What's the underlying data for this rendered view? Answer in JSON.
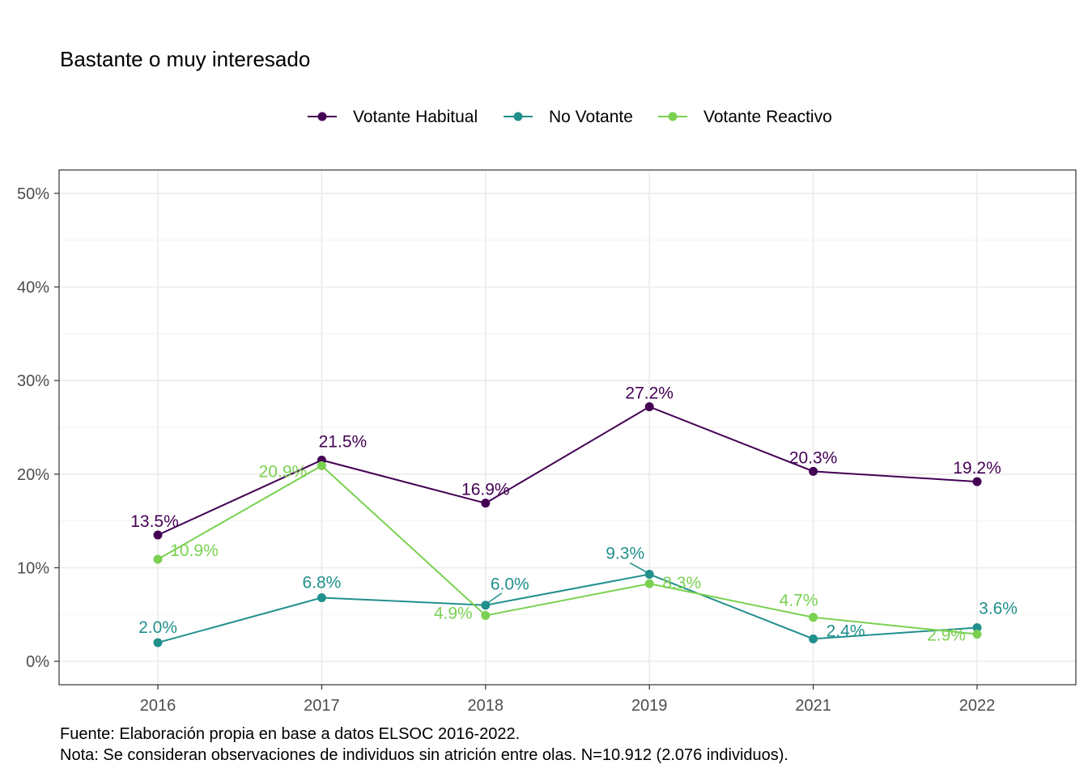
{
  "chart_data": {
    "type": "line",
    "title": "Bastante o muy interesado",
    "x": [
      "2016",
      "2017",
      "2018",
      "2019",
      "2021",
      "2022"
    ],
    "ylim": [
      -0.025,
      0.525
    ],
    "yticks": [
      0,
      0.1,
      0.2,
      0.3,
      0.4,
      0.5
    ],
    "ytick_labels": [
      "0%",
      "10%",
      "20%",
      "30%",
      "40%",
      "50%"
    ],
    "grid": true,
    "legend_position": "top",
    "series": [
      {
        "name": "Votante Habitual",
        "color": "#440154",
        "values": [
          0.135,
          0.215,
          0.169,
          0.272,
          0.203,
          0.192
        ],
        "labels": [
          "13.5%",
          "21.5%",
          "16.9%",
          "27.2%",
          "20.3%",
          "19.2%"
        ]
      },
      {
        "name": "No Votante",
        "color": "#21908C",
        "values": [
          0.02,
          0.068,
          0.06,
          0.093,
          0.024,
          0.036
        ],
        "labels": [
          "2.0%",
          "6.8%",
          "6.0%",
          "9.3%",
          "2.4%",
          "3.6%"
        ]
      },
      {
        "name": "Votante Reactivo",
        "color": "#7AD151",
        "values": [
          0.109,
          0.209,
          0.049,
          0.083,
          0.047,
          0.029
        ],
        "labels": [
          "10.9%",
          "20.9%",
          "4.9%",
          "8.3%",
          "4.7%",
          "2.9%"
        ]
      }
    ]
  },
  "caption": {
    "source": "Fuente: Elaboración propia en base a datos ELSOC 2016-2022.",
    "note": "Nota: Se consideran observaciones de individuos sin atrición entre olas. N=10.912 (2.076 individuos)."
  }
}
